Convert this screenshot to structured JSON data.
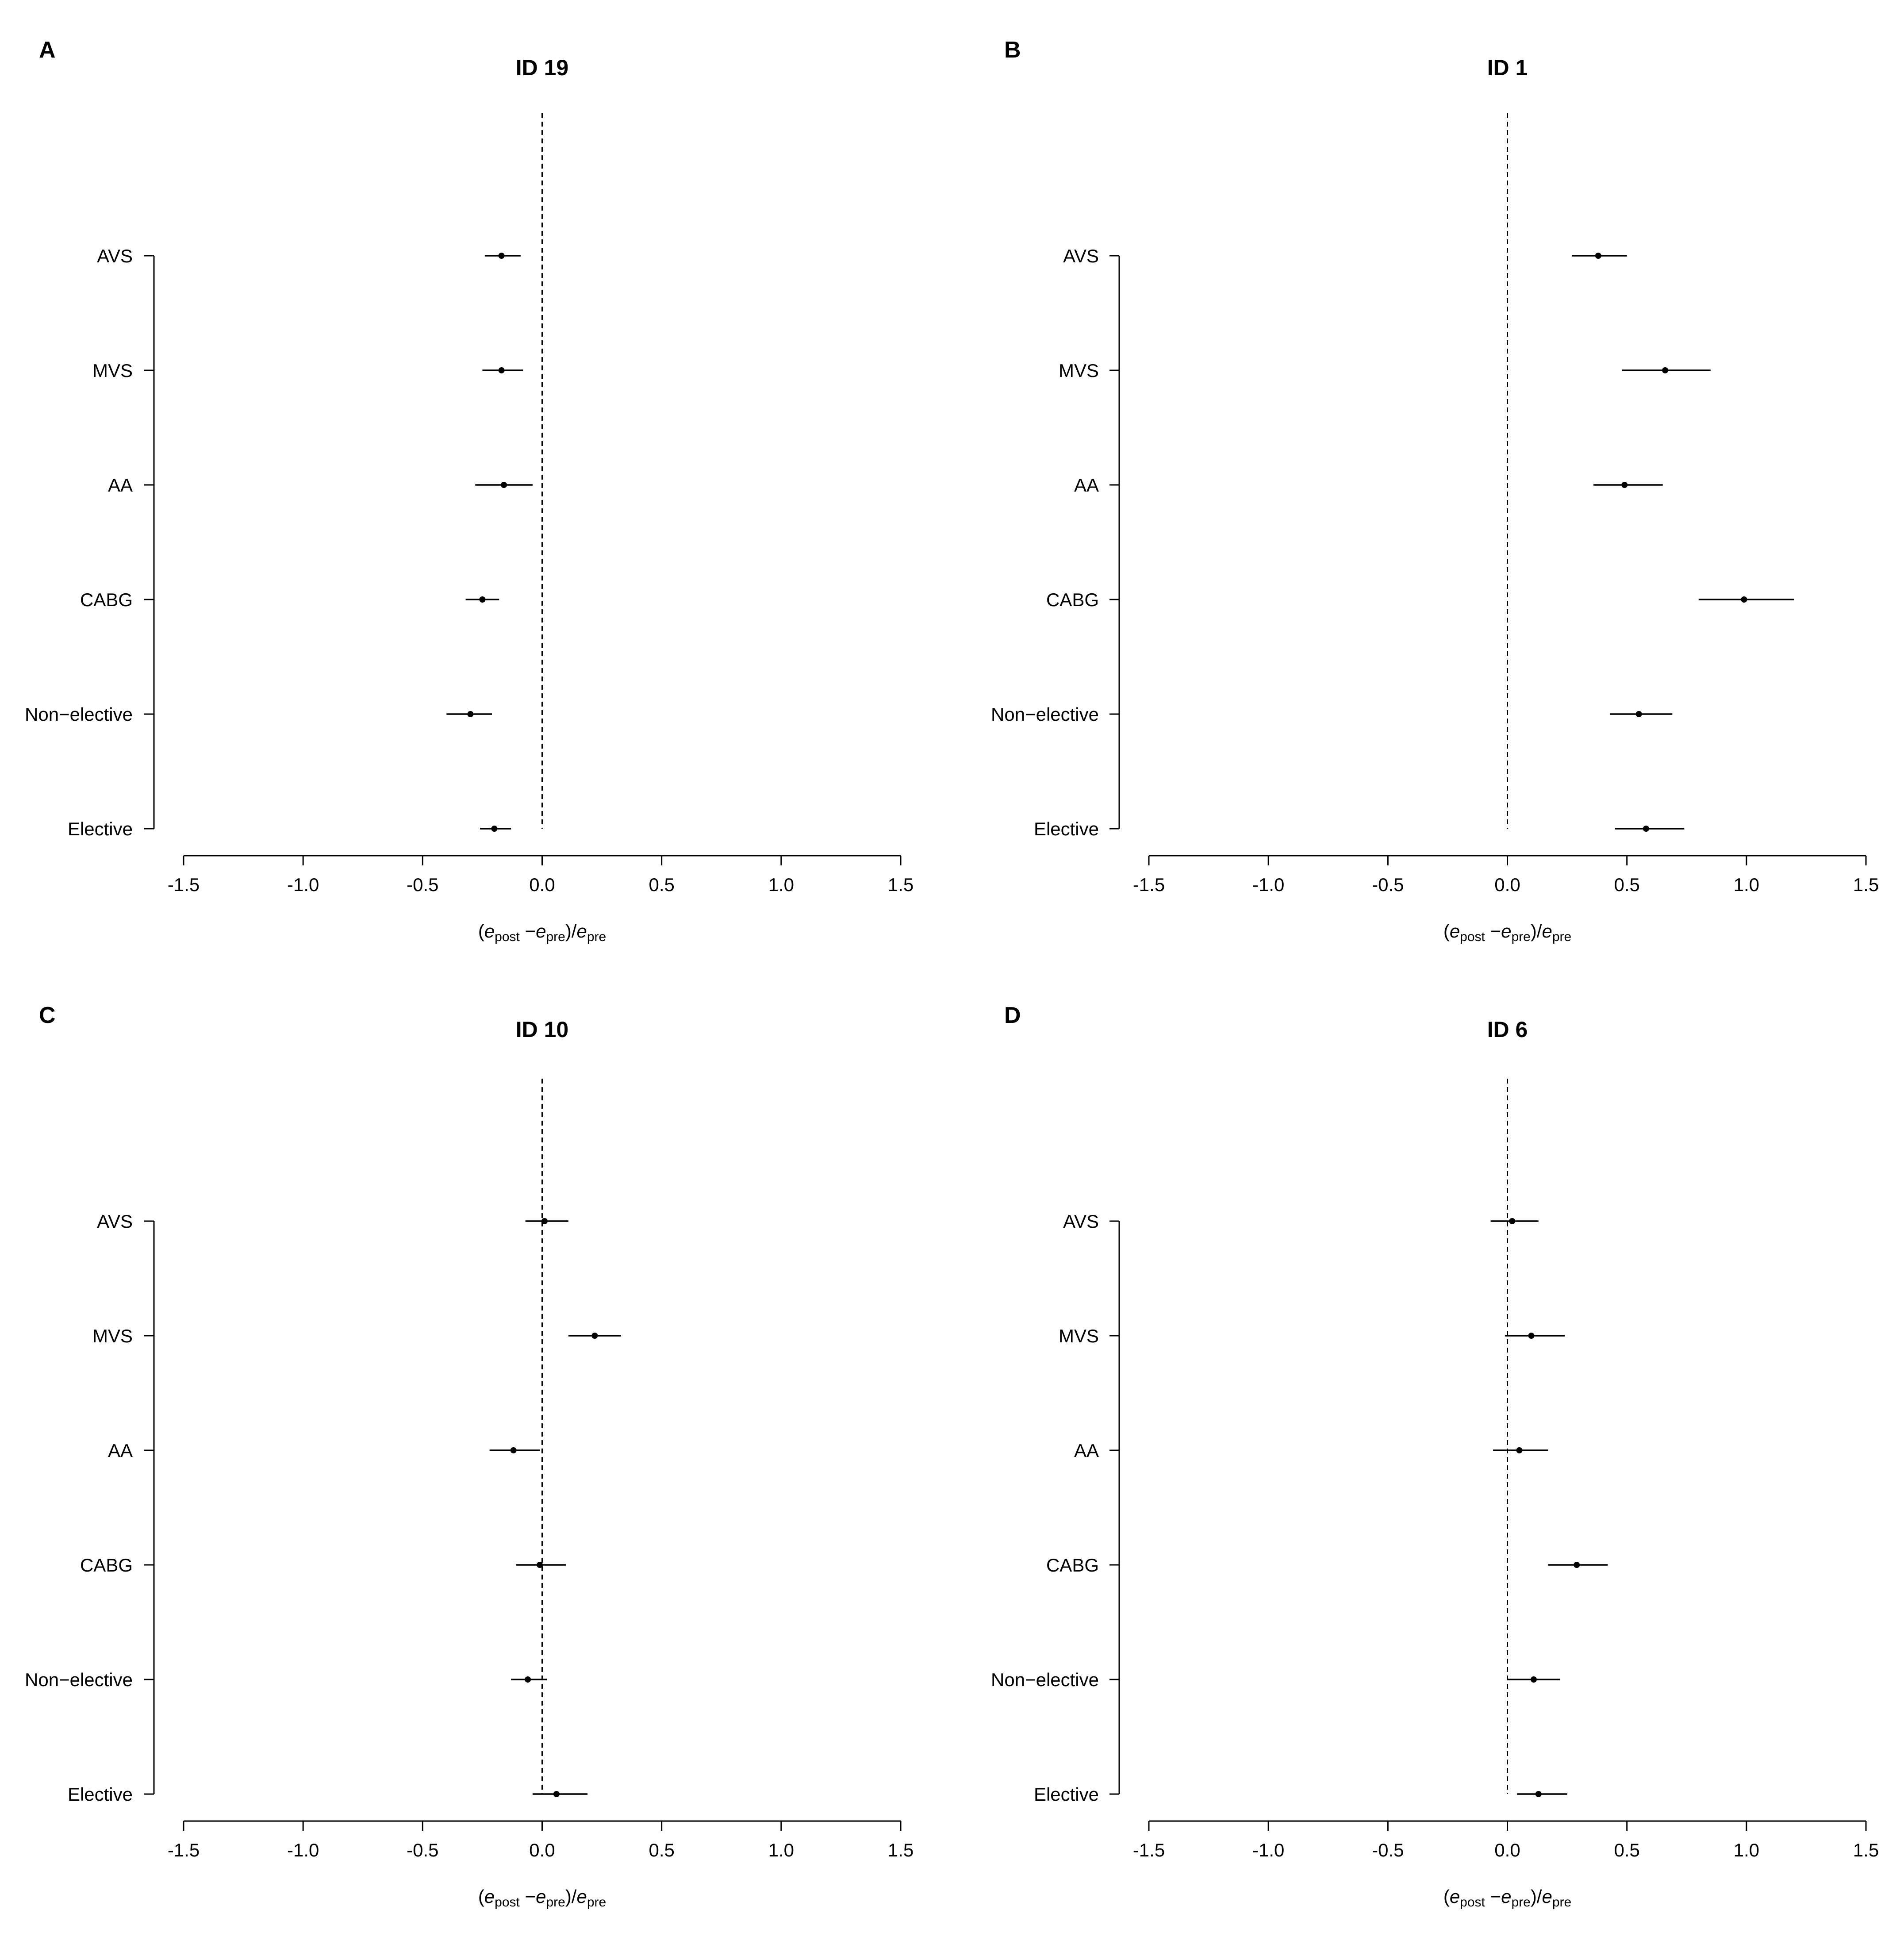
{
  "colors": {
    "ink": "#000000",
    "reference_line": "#000000",
    "background": "#ffffff"
  },
  "chart_data": [
    {
      "type": "forest",
      "panel": "A",
      "title": "ID 19",
      "xlabel": {
        "open": "(",
        "e1": "e",
        "s1": "post",
        "minus": " −",
        "e2": "e",
        "s2": "pre",
        "close": ")/",
        "e3": "e",
        "s3": "pre"
      },
      "xlim": [
        -1.5,
        1.5
      ],
      "xticks": [
        -1.5,
        -1.0,
        -0.5,
        0.0,
        0.5,
        1.0,
        1.5
      ],
      "xtick_labels": [
        "-1.5",
        "-1.0",
        "-0.5",
        "0.0",
        "0.5",
        "1.0",
        "1.5"
      ],
      "reference_x": 0,
      "categories": [
        "AVS",
        "MVS",
        "AA",
        "CABG",
        "Non−elective",
        "Elective"
      ],
      "estimates": [
        -0.17,
        -0.17,
        -0.16,
        -0.25,
        -0.3,
        -0.2
      ],
      "lower": [
        -0.24,
        -0.25,
        -0.28,
        -0.32,
        -0.4,
        -0.26
      ],
      "upper": [
        -0.09,
        -0.08,
        -0.04,
        -0.18,
        -0.21,
        -0.13
      ]
    },
    {
      "type": "forest",
      "panel": "B",
      "title": "ID 1",
      "xlabel": {
        "open": "(",
        "e1": "e",
        "s1": "post",
        "minus": " −",
        "e2": "e",
        "s2": "pre",
        "close": ")/",
        "e3": "e",
        "s3": "pre"
      },
      "xlim": [
        -1.5,
        1.5
      ],
      "xticks": [
        -1.5,
        -1.0,
        -0.5,
        0.0,
        0.5,
        1.0,
        1.5
      ],
      "xtick_labels": [
        "-1.5",
        "-1.0",
        "-0.5",
        "0.0",
        "0.5",
        "1.0",
        "1.5"
      ],
      "reference_x": 0,
      "categories": [
        "AVS",
        "MVS",
        "AA",
        "CABG",
        "Non−elective",
        "Elective"
      ],
      "estimates": [
        0.38,
        0.66,
        0.49,
        0.99,
        0.55,
        0.58
      ],
      "lower": [
        0.27,
        0.48,
        0.36,
        0.8,
        0.43,
        0.45
      ],
      "upper": [
        0.5,
        0.85,
        0.65,
        1.2,
        0.69,
        0.74
      ]
    },
    {
      "type": "forest",
      "panel": "C",
      "title": "ID 10",
      "xlabel": {
        "open": "(",
        "e1": "e",
        "s1": "post",
        "minus": " −",
        "e2": "e",
        "s2": "pre",
        "close": ")/",
        "e3": "e",
        "s3": "pre"
      },
      "xlim": [
        -1.5,
        1.5
      ],
      "xticks": [
        -1.5,
        -1.0,
        -0.5,
        0.0,
        0.5,
        1.0,
        1.5
      ],
      "xtick_labels": [
        "-1.5",
        "-1.0",
        "-0.5",
        "0.0",
        "0.5",
        "1.0",
        "1.5"
      ],
      "reference_x": 0,
      "categories": [
        "AVS",
        "MVS",
        "AA",
        "CABG",
        "Non−elective",
        "Elective"
      ],
      "estimates": [
        0.01,
        0.22,
        -0.12,
        -0.01,
        -0.06,
        0.06
      ],
      "lower": [
        -0.07,
        0.11,
        -0.22,
        -0.11,
        -0.13,
        -0.04
      ],
      "upper": [
        0.11,
        0.33,
        -0.01,
        0.1,
        0.02,
        0.19
      ]
    },
    {
      "type": "forest",
      "panel": "D",
      "title": "ID 6",
      "xlabel": {
        "open": "(",
        "e1": "e",
        "s1": "post",
        "minus": " −",
        "e2": "e",
        "s2": "pre",
        "close": ")/",
        "e3": "e",
        "s3": "pre"
      },
      "xlim": [
        -1.5,
        1.5
      ],
      "xticks": [
        -1.5,
        -1.0,
        -0.5,
        0.0,
        0.5,
        1.0,
        1.5
      ],
      "xtick_labels": [
        "-1.5",
        "-1.0",
        "-0.5",
        "0.0",
        "0.5",
        "1.0",
        "1.5"
      ],
      "reference_x": 0,
      "categories": [
        "AVS",
        "MVS",
        "AA",
        "CABG",
        "Non−elective",
        "Elective"
      ],
      "estimates": [
        0.02,
        0.1,
        0.05,
        0.29,
        0.11,
        0.13
      ],
      "lower": [
        -0.07,
        -0.01,
        -0.06,
        0.17,
        0.0,
        0.04
      ],
      "upper": [
        0.13,
        0.24,
        0.17,
        0.42,
        0.22,
        0.25
      ]
    }
  ]
}
